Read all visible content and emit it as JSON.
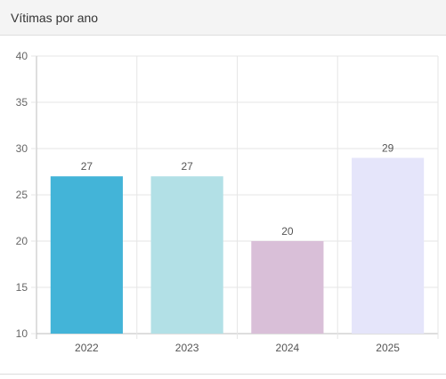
{
  "card": {
    "title": "Vítimas por ano"
  },
  "chart_data": {
    "type": "bar",
    "title": "Vítimas por ano",
    "categories": [
      "2022",
      "2023",
      "2024",
      "2025"
    ],
    "values": [
      27,
      27,
      20,
      29
    ],
    "colors": [
      "#43b4d8",
      "#b2e0e6",
      "#d9bfd8",
      "#e5e5fa"
    ],
    "ylim": [
      10,
      40
    ],
    "yticks": [
      10,
      15,
      20,
      25,
      30,
      35,
      40
    ],
    "grid": true,
    "data_labels": true
  }
}
